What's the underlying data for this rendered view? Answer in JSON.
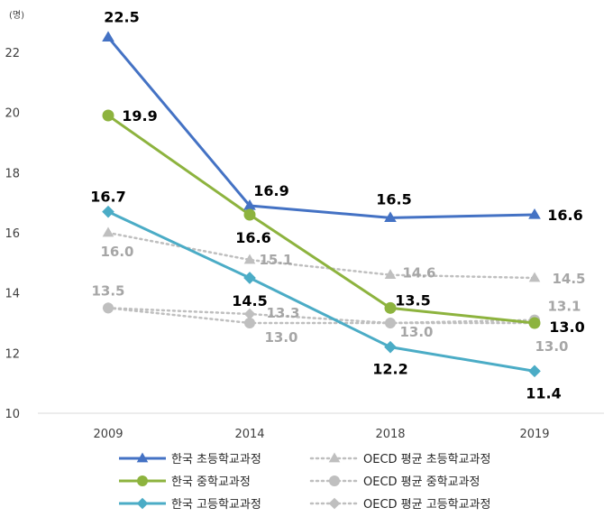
{
  "chart_data": {
    "type": "line",
    "unit": "(명)",
    "categories": [
      "2009",
      "2014",
      "2018",
      "2019"
    ],
    "ylim": [
      10,
      22
    ],
    "yticks": [
      "10",
      "12",
      "14",
      "16",
      "18",
      "20",
      "22"
    ],
    "grid": false,
    "legend_position": "bottom",
    "series": [
      {
        "name": "한국 초등학교과정",
        "values": [
          22.5,
          16.9,
          16.5,
          16.6
        ],
        "labels": [
          "22.5",
          "16.9",
          "16.5",
          "16.6"
        ],
        "color": "#4472c4",
        "marker": "triangle",
        "dash": false
      },
      {
        "name": "한국 중학교과정",
        "values": [
          19.9,
          16.6,
          13.5,
          13.0
        ],
        "labels": [
          "19.9",
          "16.6",
          "13.5",
          "13.0"
        ],
        "color": "#8db33e",
        "marker": "circle",
        "dash": false
      },
      {
        "name": "한국 고등학교과정",
        "values": [
          16.7,
          14.5,
          12.2,
          11.4
        ],
        "labels": [
          "16.7",
          "14.5",
          "12.2",
          "11.4"
        ],
        "color": "#4bacc6",
        "marker": "diamond",
        "dash": false
      },
      {
        "name": "OECD 평균 초등학교과정",
        "values": [
          16.0,
          15.1,
          14.6,
          14.5
        ],
        "labels": [
          "16.0",
          "15.1",
          "14.6",
          "14.5"
        ],
        "color": "#bfbfbf",
        "marker": "triangle",
        "dash": true
      },
      {
        "name": "OECD 평균 중학교과정",
        "values": [
          13.5,
          13.0,
          13.0,
          13.1
        ],
        "labels": [
          "13.5",
          "13.0",
          "13.0",
          "13.1"
        ],
        "color": "#bfbfbf",
        "marker": "circle",
        "dash": true
      },
      {
        "name": "OECD 평균 고등학교과정",
        "values": [
          13.5,
          13.3,
          13.0,
          13.0
        ],
        "labels": [
          "",
          "13.3",
          "",
          "13.0"
        ],
        "color": "#bfbfbf",
        "marker": "diamond",
        "dash": true
      }
    ]
  }
}
